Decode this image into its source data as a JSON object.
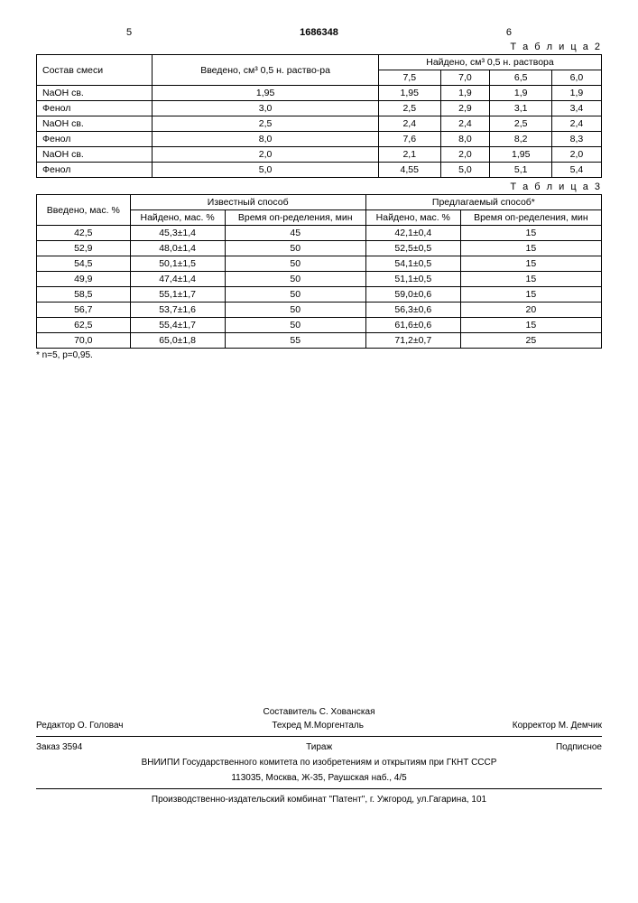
{
  "header": {
    "left_num": "5",
    "doc_number": "1686348",
    "right_num": "6"
  },
  "table2": {
    "label": "Т а б л и ц а 2",
    "col1_header": "Состав смеси",
    "col2_header": "Введено, см³ 0,5 н. раство-ра",
    "naideno_header": "Найдено, см³ 0,5 н. раствора",
    "sub_cols": [
      "7,5",
      "7,0",
      "6,5",
      "6,0"
    ],
    "rows": [
      {
        "label": "NaOH св.",
        "vvedeno": "1,95",
        "v": [
          "1,95",
          "1,9",
          "1,9",
          "1,9"
        ]
      },
      {
        "label": "Фенол",
        "vvedeno": "3,0",
        "v": [
          "2,5",
          "2,9",
          "3,1",
          "3,4"
        ]
      },
      {
        "label": "NaOH св.",
        "vvedeno": "2,5",
        "v": [
          "2,4",
          "2,4",
          "2,5",
          "2,4"
        ]
      },
      {
        "label": "Фенол",
        "vvedeno": "8,0",
        "v": [
          "7,6",
          "8,0",
          "8,2",
          "8,3"
        ]
      },
      {
        "label": "NaOH св.",
        "vvedeno": "2,0",
        "v": [
          "2,1",
          "2,0",
          "1,95",
          "2,0"
        ]
      },
      {
        "label": "Фенол",
        "vvedeno": "5,0",
        "v": [
          "4,55",
          "5,0",
          "5,1",
          "5,4"
        ]
      }
    ]
  },
  "table3": {
    "label": "Т а б л и ц а 3",
    "col_vvedeno": "Введено, мас. %",
    "izvestny": "Известный способ",
    "predlag": "Предлагаемый способ*",
    "naideno": "Найдено, мас. %",
    "vremya": "Время оп-ределения, мин",
    "rows": [
      {
        "in": "42,5",
        "kn": "45,3±1,4",
        "kt": "45",
        "pn": "42,1±0,4",
        "pt": "15"
      },
      {
        "in": "52,9",
        "kn": "48,0±1,4",
        "kt": "50",
        "pn": "52,5±0,5",
        "pt": "15"
      },
      {
        "in": "54,5",
        "kn": "50,1±1,5",
        "kt": "50",
        "pn": "54,1±0,5",
        "pt": "15"
      },
      {
        "in": "49,9",
        "kn": "47,4±1,4",
        "kt": "50",
        "pn": "51,1±0,5",
        "pt": "15"
      },
      {
        "in": "58,5",
        "kn": "55,1±1,7",
        "kt": "50",
        "pn": "59,0±0,6",
        "pt": "15"
      },
      {
        "in": "56,7",
        "kn": "53,7±1,6",
        "kt": "50",
        "pn": "56,3±0,6",
        "pt": "20"
      },
      {
        "in": "62,5",
        "kn": "55,4±1,7",
        "kt": "50",
        "pn": "61,6±0,6",
        "pt": "15"
      },
      {
        "in": "70,0",
        "kn": "65,0±1,8",
        "kt": "55",
        "pn": "71,2±0,7",
        "pt": "25"
      }
    ],
    "footnote": "* n=5, p=0,95."
  },
  "footer": {
    "sostavitel": "Составитель  С. Хованская",
    "redaktor": "Редактор  О. Головач",
    "texred": "Техред М.Моргенталь",
    "korrektor": "Корректор   М. Демчик",
    "zakaz": "Заказ  3594",
    "tirazh": "Тираж",
    "podpisnoe": "Подписное",
    "org1": "ВНИИПИ Государственного комитета по изобретениям и открытиям при ГКНТ СССР",
    "addr1": "113035, Москва, Ж-35, Раушская наб., 4/5",
    "org2": "Производственно-издательский комбинат \"Патент\", г. Ужгород, ул.Гагарина, 101"
  }
}
